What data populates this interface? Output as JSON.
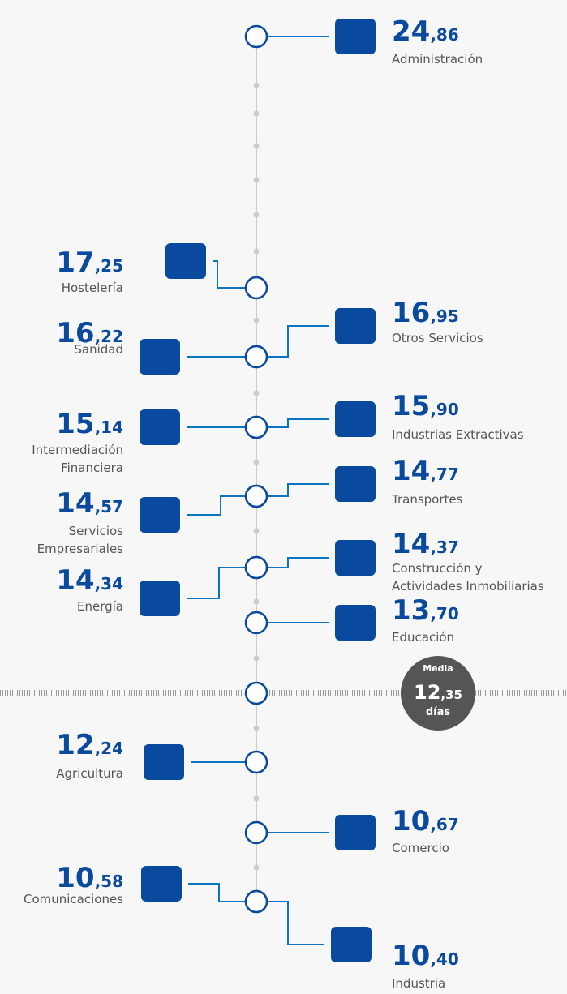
{
  "items": [
    {
      "value": "24,86",
      "label": [
        "Administración"
      ]
    },
    {
      "value": "17,25",
      "label": [
        "Hostelería"
      ]
    },
    {
      "value": "16,95",
      "label": [
        "Otros Servicios"
      ]
    },
    {
      "value": "16,22",
      "label": [
        "Sanidad"
      ]
    },
    {
      "value": "15,90",
      "label": [
        "Industrias Extractivas"
      ]
    },
    {
      "value": "15,14",
      "label": [
        "Intermediación",
        "Financiera"
      ]
    },
    {
      "value": "14,77",
      "label": [
        "Transportes"
      ]
    },
    {
      "value": "14,57",
      "label": [
        "Servicios",
        "Empresariales"
      ]
    },
    {
      "value": "14,37",
      "label": [
        "Construcción y",
        "Actividades Inmobiliarias"
      ]
    },
    {
      "value": "14,34",
      "label": [
        "Energía"
      ]
    },
    {
      "value": "13,70",
      "label": [
        "Educación"
      ]
    },
    {
      "value": "12,24",
      "label": [
        "Agricultura"
      ]
    },
    {
      "value": "10,67",
      "label": [
        "Comercio"
      ]
    },
    {
      "value": "10,58",
      "label": [
        "Comunicaciones"
      ]
    },
    {
      "value": "10,40",
      "label": [
        "Industria"
      ]
    }
  ],
  "mean": {
    "title": "Media",
    "value": "12,35",
    "unit": "días"
  }
}
